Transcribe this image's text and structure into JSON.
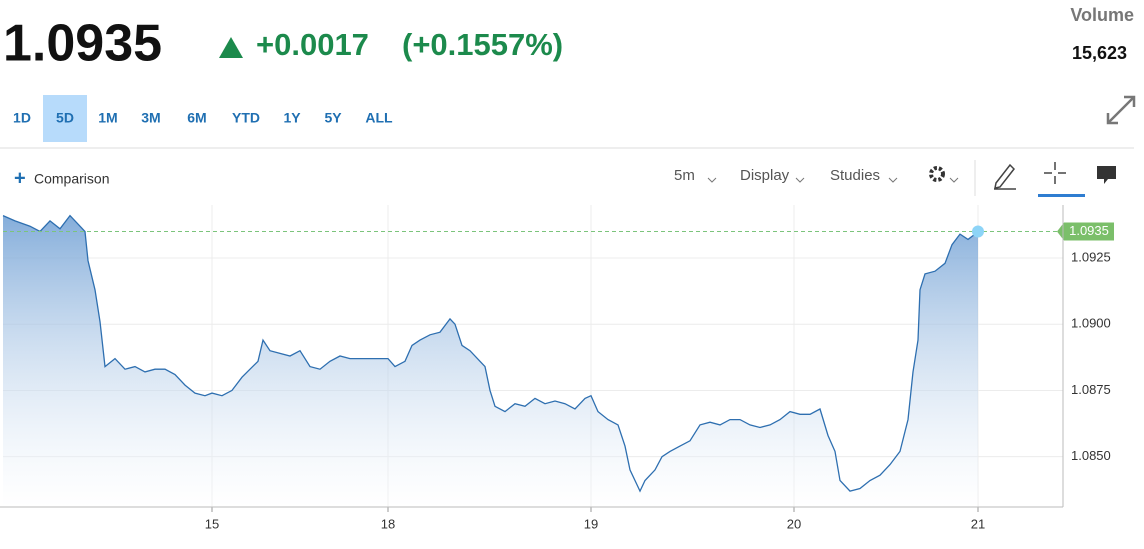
{
  "quote": {
    "price": "1.0935",
    "change": "+0.0017",
    "change_pct": "(+0.1557%)",
    "volume_label": "Volume",
    "volume": "15,623"
  },
  "ranges": [
    "1D",
    "5D",
    "1M",
    "3M",
    "6M",
    "YTD",
    "1Y",
    "5Y",
    "ALL"
  ],
  "selected_range": "5D",
  "toolbar": {
    "comparison": "Comparison",
    "interval": "5m",
    "display": "Display",
    "studies": "Studies"
  },
  "chart_data": {
    "type": "area",
    "color": "#2e6fb0",
    "x": [
      0,
      6,
      13.5,
      18.5,
      23.5,
      28.5,
      33.5,
      38.5,
      41,
      42.5,
      46,
      48.5,
      51,
      56,
      61,
      66,
      71,
      76,
      81,
      86,
      91,
      96,
      101,
      104.5,
      109.5,
      114.5,
      119.5,
      123.5,
      127.5,
      130,
      133.5,
      138.5,
      143.5,
      148.5,
      153.5,
      158.5,
      163.5,
      168.5,
      173.5,
      178.5,
      192.5,
      196,
      201,
      204.5,
      208.5,
      213.5,
      218.5,
      223.5,
      226,
      229.5,
      233.5,
      238.5,
      241,
      243.5,
      246,
      251,
      256,
      261,
      266,
      271,
      276,
      281,
      286,
      291,
      294,
      297.5,
      302.5,
      307.5,
      311,
      313.5,
      318.5,
      321,
      326,
      329.5,
      333.5,
      338.5,
      343.5,
      348.5,
      353.5,
      358.5,
      363.5,
      368.5,
      373.5,
      378.5,
      383.5,
      388.5,
      393.5,
      398.5,
      403.5,
      408.5,
      412.5,
      416,
      418.5,
      423.5,
      428.5,
      433.5,
      438.5,
      443.5,
      448.5,
      452.5,
      455,
      457.5,
      458.5,
      461,
      466,
      471,
      474.5,
      478.5,
      482.5,
      486,
      487.5
    ],
    "values": [
      1.0941,
      1.0939,
      1.0937,
      1.0935,
      1.0939,
      1.0936,
      1.0941,
      1.0937,
      1.0935,
      1.0924,
      1.0913,
      1.0901,
      1.0884,
      1.0887,
      1.0883,
      1.0884,
      1.0882,
      1.0883,
      1.0883,
      1.0881,
      1.0877,
      1.0874,
      1.0873,
      1.0874,
      1.0873,
      1.0875,
      1.088,
      1.0883,
      1.0886,
      1.0894,
      1.089,
      1.0889,
      1.0888,
      1.089,
      1.0884,
      1.0883,
      1.0886,
      1.0888,
      1.0887,
      1.0887,
      1.0887,
      1.0884,
      1.0886,
      1.0892,
      1.0894,
      1.0896,
      1.0897,
      1.0902,
      1.09,
      1.0892,
      1.089,
      1.0886,
      1.0884,
      1.0875,
      1.0869,
      1.0867,
      1.087,
      1.0869,
      1.0872,
      1.087,
      1.0871,
      1.087,
      1.0868,
      1.0872,
      1.0873,
      1.0867,
      1.0864,
      1.0862,
      1.0854,
      1.0845,
      1.0837,
      1.0841,
      1.0845,
      1.085,
      1.0852,
      1.0854,
      1.0856,
      1.0862,
      1.0863,
      1.0862,
      1.0864,
      1.0864,
      1.0862,
      1.0861,
      1.0862,
      1.0864,
      1.0867,
      1.0866,
      1.0866,
      1.0868,
      1.0858,
      1.0852,
      1.0841,
      1.0837,
      1.0838,
      1.0841,
      1.0843,
      1.0847,
      1.0852,
      1.0864,
      1.0882,
      1.0894,
      1.0913,
      1.0919,
      1.092,
      1.0923,
      1.093,
      1.0934,
      1.0932,
      1.0934,
      1.0935
    ],
    "xlim": [
      0,
      530
    ],
    "xticks": [
      {
        "value": 104.5,
        "label": "15"
      },
      {
        "value": 192.5,
        "label": "18"
      },
      {
        "value": 294,
        "label": "19"
      },
      {
        "value": 395.5,
        "label": "20"
      },
      {
        "value": 487.5,
        "label": "21"
      }
    ],
    "ylim": [
      1.0831,
      1.0945
    ],
    "yticks": [
      {
        "value": 1.085,
        "label": "1.0850"
      },
      1.0875,
      {
        "value": 1.09,
        "label": "1.0900"
      },
      1.0925
    ],
    "grid": true
  }
}
